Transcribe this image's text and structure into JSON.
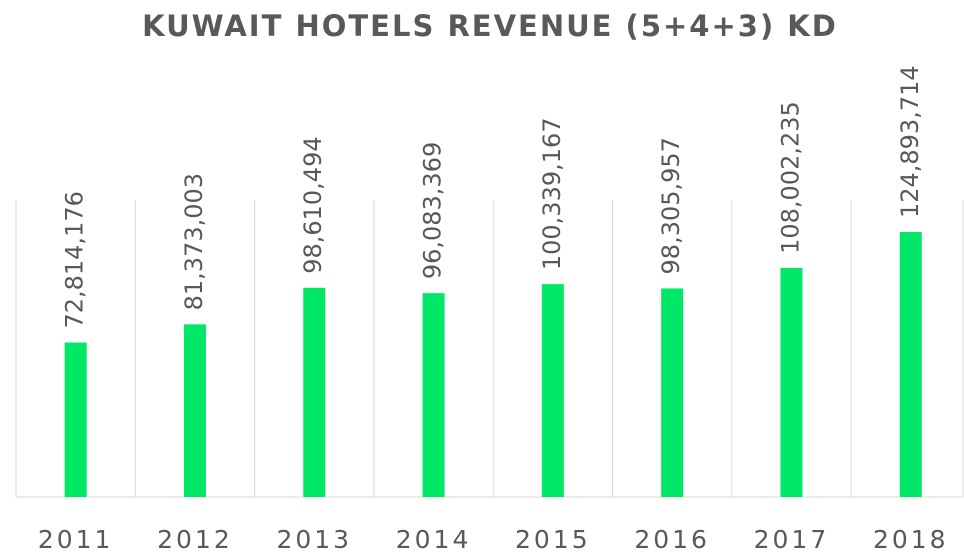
{
  "chart_data": {
    "type": "bar",
    "title": "KUWAIT HOTELS REVENUE (5+4+3) KD",
    "categories": [
      "2011",
      "2012",
      "2013",
      "2014",
      "2015",
      "2016",
      "2017",
      "2018"
    ],
    "values": [
      72814176,
      81373003,
      98610494,
      96083369,
      100339167,
      98305957,
      108002235,
      124893714
    ],
    "value_labels": [
      "72,814,176",
      "81,373,003",
      "98,610,494",
      "96,083,369",
      "100,339,167",
      "98,305,957",
      "108,002,235",
      "124,893,714"
    ],
    "color": "#00e865",
    "ylim": [
      0,
      140000000
    ]
  }
}
